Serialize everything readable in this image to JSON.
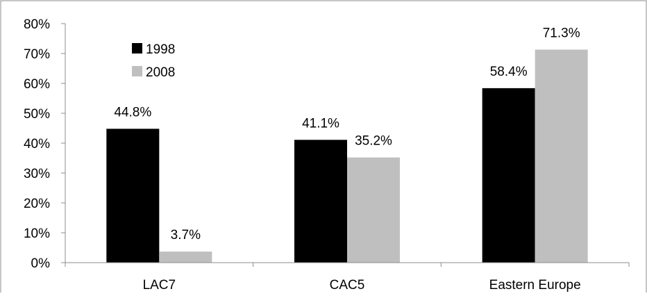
{
  "chart_data": {
    "type": "bar",
    "categories": [
      "LAC7",
      "CAC5",
      "Eastern Europe"
    ],
    "series": [
      {
        "name": "1998",
        "values": [
          44.8,
          41.1,
          58.4
        ],
        "color": "#000000"
      },
      {
        "name": "2008",
        "values": [
          3.7,
          35.2,
          71.3
        ],
        "color": "#BFBFBF"
      }
    ],
    "data_labels": [
      [
        "44.8%",
        "41.1%",
        "58.4%"
      ],
      [
        "3.7%",
        "35.2%",
        "71.3%"
      ]
    ],
    "title": "",
    "xlabel": "",
    "ylabel": "",
    "ylim": [
      0,
      80
    ],
    "yticks": [
      "0%",
      "10%",
      "20%",
      "30%",
      "40%",
      "50%",
      "60%",
      "70%",
      "80%"
    ],
    "grid": false,
    "legend_position": "top-left"
  }
}
